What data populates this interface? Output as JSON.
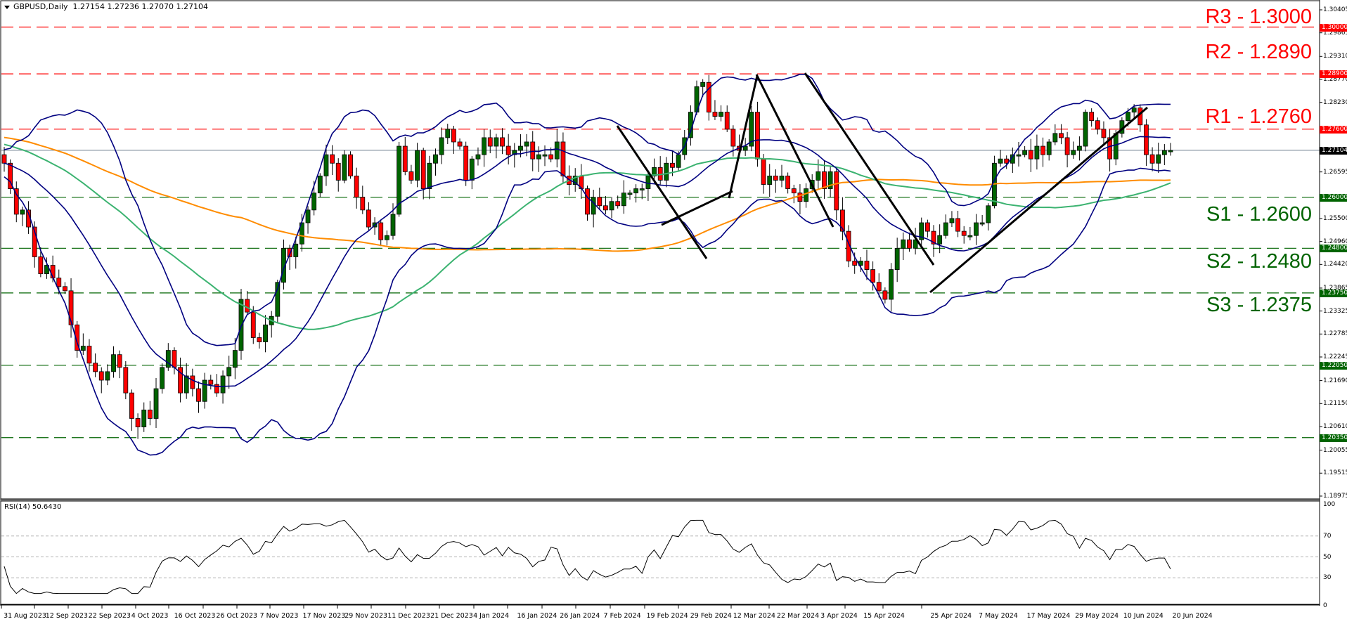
{
  "header": {
    "symbol": "GBPUSD,Daily",
    "ohlc": "1.27154 1.27236 1.27070 1.27104"
  },
  "rsi_header": "RSI(14) 50.6430",
  "colors": {
    "resistance": "#ff0000",
    "support": "#006400",
    "bull": "#006400",
    "bear": "#ff0000",
    "bollinger": "#000080",
    "ma_green": "#3cb371",
    "ma_orange": "#ff8c00",
    "trendline": "#000000",
    "current_price_line": "#708090"
  },
  "levels": [
    {
      "label": "R3 - 1.3000",
      "price": 1.3,
      "badge": "1.30000",
      "type": "resistance"
    },
    {
      "label": "R2 - 1.2890",
      "price": 1.289,
      "badge": "1.28900",
      "type": "resistance"
    },
    {
      "label": "R1 - 1.2760",
      "price": 1.276,
      "badge": "1.27600",
      "type": "resistance"
    },
    {
      "label": "S1 - 1.2600",
      "price": 1.26,
      "badge": "1.26000",
      "type": "support"
    },
    {
      "label": "S2 - 1.2480",
      "price": 1.248,
      "badge": "1.24800",
      "type": "support"
    },
    {
      "label": "S3 - 1.2375",
      "price": 1.2375,
      "badge": "1.23750",
      "type": "support"
    },
    {
      "label": "",
      "price": 1.2205,
      "badge": "1.22050",
      "type": "support"
    },
    {
      "label": "",
      "price": 1.2035,
      "badge": "1.20350",
      "type": "support"
    }
  ],
  "current_price": {
    "price": 1.27104,
    "badge": "1.27104"
  },
  "price_axis_ticks": [
    "1.30405",
    "1.29865",
    "1.29310",
    "1.28770",
    "1.28230",
    "1.26595",
    "1.25500",
    "1.24960",
    "1.24420",
    "1.23865",
    "1.23325",
    "1.22785",
    "1.22245",
    "1.21690",
    "1.21150",
    "1.20610",
    "1.20055",
    "1.19515",
    "1.18975"
  ],
  "rsi_axis_ticks": [
    "100",
    "70",
    "50",
    "30",
    "0"
  ],
  "date_labels": [
    "31 Aug 2023",
    "12 Sep 2023",
    "22 Sep 2023",
    "4 Oct 2023",
    "16 Oct 2023",
    "26 Oct 2023",
    "7 Nov 2023",
    "17 Nov 2023",
    "29 Nov 2023",
    "11 Dec 2023",
    "21 Dec 2023",
    "4 Jan 2024",
    "16 Jan 2024",
    "26 Jan 2024",
    "7 Feb 2024",
    "19 Feb 2024",
    "29 Feb 2024",
    "12 Mar 2024",
    "22 Mar 2024",
    "3 Apr 2024",
    "15 Apr 2024",
    "25 Apr 2024",
    "7 May 2024",
    "17 May 2024",
    "29 May 2024",
    "10 Jun 2024",
    "20 Jun 2024"
  ],
  "chart_data": {
    "type": "candlestick",
    "title": "GBPUSD, Daily",
    "ylim": [
      1.18975,
      1.30405
    ],
    "x_start": "31 Aug 2023",
    "x_end": "20 Jun 2024",
    "last_ohlc": {
      "open": 1.27154,
      "high": 1.27236,
      "low": 1.2707,
      "close": 1.27104
    },
    "horizontal_levels": {
      "R3": 1.3,
      "R2": 1.289,
      "R1": 1.276,
      "S1": 1.26,
      "S2": 1.248,
      "S3": 1.2375,
      "extra": [
        1.2205,
        1.2035
      ]
    },
    "close_series_approx": [
      1.268,
      1.262,
      1.256,
      1.257,
      1.253,
      1.246,
      1.242,
      1.244,
      1.241,
      1.239,
      1.238,
      1.23,
      1.224,
      1.225,
      1.221,
      1.219,
      1.217,
      1.219,
      1.223,
      1.22,
      1.214,
      1.208,
      1.206,
      1.21,
      1.208,
      1.215,
      1.22,
      1.224,
      1.22,
      1.214,
      1.218,
      1.215,
      1.212,
      1.217,
      1.216,
      1.214,
      1.218,
      1.22,
      1.224,
      1.236,
      1.233,
      1.227,
      1.226,
      1.23,
      1.232,
      1.24,
      1.248,
      1.246,
      1.249,
      1.254,
      1.257,
      1.261,
      1.265,
      1.27,
      1.268,
      1.264,
      1.27,
      1.265,
      1.26,
      1.257,
      1.253,
      1.254,
      1.25,
      1.251,
      1.256,
      1.272,
      1.266,
      1.264,
      1.271,
      1.262,
      1.268,
      1.27,
      1.274,
      1.276,
      1.273,
      1.272,
      1.264,
      1.269,
      1.27,
      1.274,
      1.272,
      1.274,
      1.272,
      1.27,
      1.271,
      1.272,
      1.273,
      1.269,
      1.27,
      1.27,
      1.269,
      1.273,
      1.265,
      1.263,
      1.265,
      1.262,
      1.256,
      1.26,
      1.258,
      1.257,
      1.259,
      1.258,
      1.261,
      1.261,
      1.262,
      1.262,
      1.265,
      1.267,
      1.264,
      1.268,
      1.267,
      1.27,
      1.274,
      1.28,
      1.286,
      1.287,
      1.28,
      1.279,
      1.28,
      1.276,
      1.272,
      1.271,
      1.272,
      1.28,
      1.269,
      1.263,
      1.265,
      1.264,
      1.265,
      1.262,
      1.261,
      1.259,
      1.262,
      1.264,
      1.266,
      1.262,
      1.266,
      1.257,
      1.252,
      1.245,
      1.244,
      1.245,
      1.243,
      1.24,
      1.238,
      1.236,
      1.243,
      1.248,
      1.25,
      1.248,
      1.25,
      1.254,
      1.252,
      1.249,
      1.251,
      1.254,
      1.255,
      1.252,
      1.251,
      1.251,
      1.254,
      1.254,
      1.258,
      1.268,
      1.269,
      1.268,
      1.27,
      1.27,
      1.271,
      1.269,
      1.272,
      1.27,
      1.273,
      1.275,
      1.274,
      1.27,
      1.271,
      1.272,
      1.28,
      1.278,
      1.276,
      1.274,
      1.269,
      1.275,
      1.278,
      1.28,
      1.281,
      1.277,
      1.27,
      1.268,
      1.27,
      1.271,
      1.271
    ],
    "rsi": {
      "period": 14,
      "last": 50.643,
      "levels": [
        70,
        50,
        30
      ],
      "ylim": [
        0,
        100
      ]
    },
    "indicators": [
      "Bollinger Bands",
      "Moving Average (green)",
      "Moving Average (orange)",
      "RSI(14)"
    ]
  }
}
